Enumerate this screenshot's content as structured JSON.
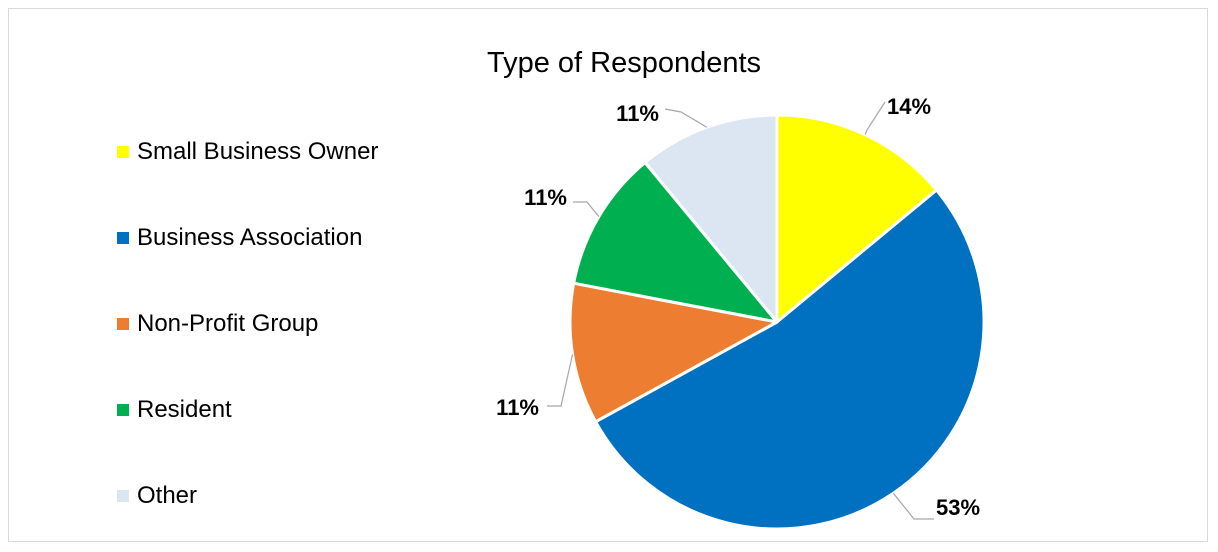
{
  "chart_data": {
    "type": "pie",
    "title": "Type of Respondents",
    "categories": [
      "Small Business Owner",
      "Business Association",
      "Non-Profit Group",
      "Resident",
      "Other"
    ],
    "values": [
      14,
      53,
      11,
      11,
      11
    ],
    "data_labels": [
      "14%",
      "53%",
      "11%",
      "11%",
      "11%"
    ],
    "colors": [
      "#ffff00",
      "#0070c0",
      "#ed7d31",
      "#00b050",
      "#dce6f2"
    ],
    "legend_position": "left",
    "start_angle_deg": 0,
    "direction": "clockwise"
  }
}
